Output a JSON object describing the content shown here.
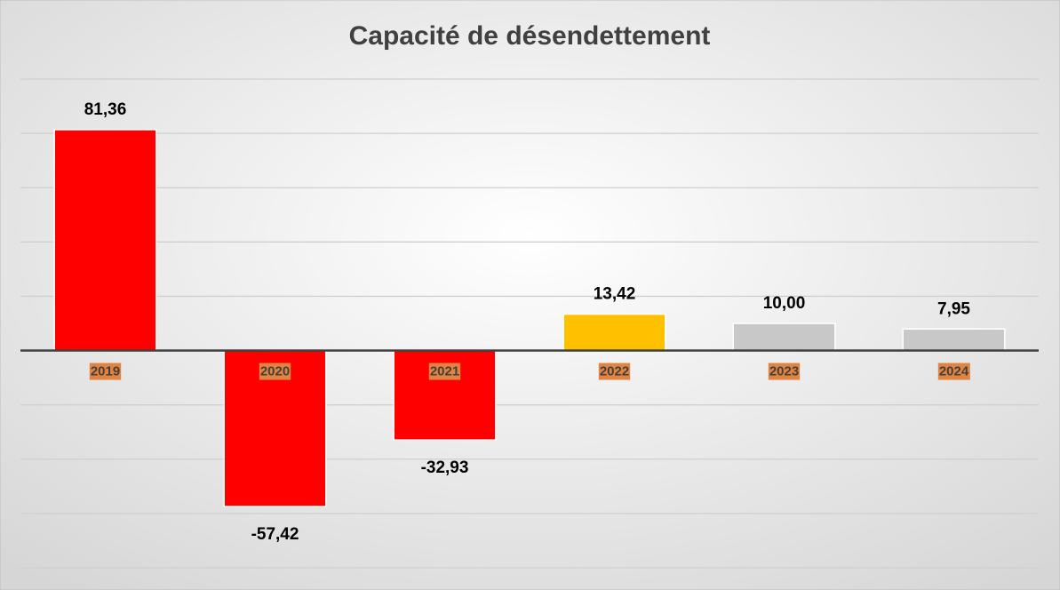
{
  "chart_data": {
    "type": "bar",
    "title": "Capacité de désendettement",
    "categories": [
      "2019",
      "2020",
      "2021",
      "2022",
      "2023",
      "2024"
    ],
    "values": [
      81.36,
      -57.42,
      -32.93,
      13.42,
      10.0,
      7.95
    ],
    "value_labels": [
      "81,36",
      "-57,42",
      "-32,93",
      "13,42",
      "10,00",
      "7,95"
    ],
    "colors": [
      "#ff0000",
      "#ff0000",
      "#ff0000",
      "#ffc000",
      "#c8c8c8",
      "#c8c8c8"
    ],
    "category_label_background": "#e2843f",
    "ylim": [
      -80,
      100
    ],
    "yticks": [
      -80,
      -60,
      -40,
      -20,
      0,
      20,
      40,
      60,
      80,
      100
    ],
    "grid": true
  }
}
